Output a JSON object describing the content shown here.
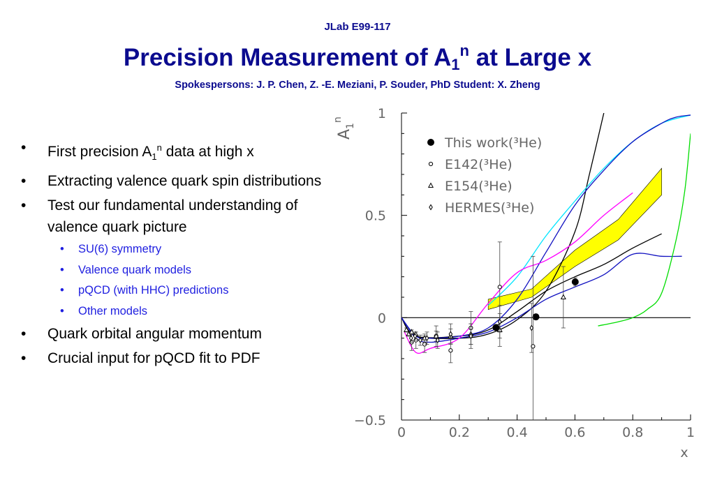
{
  "header": {
    "experiment": "JLab E99-117",
    "title_main": "Precision Measurement of A",
    "title_sub": "1",
    "title_sup": "n",
    "title_end": " at Large x",
    "spokespersons": "Spokespersons: J. P. Chen, Z. -E. Meziani, P. Souder, PhD Student: X. Zheng"
  },
  "bullets": {
    "b1_pre": "First precision A",
    "b1_sub": "1",
    "b1_sup": "n",
    "b1_post": " data at high x",
    "b2": "Extracting valence quark spin distributions",
    "b3": "Test our fundamental understanding of valence quark picture",
    "sub1": "SU(6) symmetry",
    "sub2": "Valence quark models",
    "sub3": "pQCD (with HHC) predictions",
    "sub4": "Other models",
    "b4": "Quark orbital angular momentum",
    "b5": "Crucial input for pQCD fit to PDF"
  },
  "chart_data": {
    "type": "scatter",
    "xlabel": "x",
    "ylabel": "A",
    "ylabel_sub": "1",
    "ylabel_sup": "n",
    "xlim": [
      0,
      1
    ],
    "ylim": [
      -0.5,
      1
    ],
    "x_ticks": [
      "0",
      "0.2",
      "0.4",
      "0.6",
      "0.8",
      "1"
    ],
    "y_ticks": [
      "-0.5",
      "0",
      "0.5",
      "1"
    ],
    "legend_position": "top-left inside",
    "series": [
      {
        "name": "This work(3He)",
        "marker": "filled-circle",
        "points": [
          [
            0.327,
            -0.048,
            0.0
          ],
          [
            0.465,
            0.004,
            0.0
          ],
          [
            0.601,
            0.175,
            0.02
          ]
        ]
      },
      {
        "name": "E142(3He)",
        "marker": "open-circle",
        "points": [
          [
            0.035,
            -0.12,
            0.04
          ],
          [
            0.05,
            -0.11,
            0.04
          ],
          [
            0.08,
            -0.13,
            0.04
          ],
          [
            0.12,
            -0.09,
            0.05
          ],
          [
            0.17,
            -0.16,
            0.06
          ],
          [
            0.24,
            -0.05,
            0.08
          ],
          [
            0.34,
            0.15,
            0.22
          ],
          [
            0.455,
            -0.14,
            0.44
          ]
        ]
      },
      {
        "name": "E154(3He)",
        "marker": "open-triangle",
        "points": [
          [
            0.017,
            -0.06,
            0.01
          ],
          [
            0.025,
            -0.08,
            0.01
          ],
          [
            0.035,
            -0.07,
            0.01
          ],
          [
            0.049,
            -0.08,
            0.01
          ],
          [
            0.08,
            -0.1,
            0.02
          ],
          [
            0.12,
            -0.09,
            0.025
          ],
          [
            0.17,
            -0.09,
            0.035
          ],
          [
            0.24,
            -0.08,
            0.05
          ],
          [
            0.34,
            -0.06,
            0.08
          ],
          [
            0.56,
            0.1,
            0.15
          ]
        ]
      },
      {
        "name": "HERMES(3He)",
        "marker": "open-diamond",
        "points": [
          [
            0.033,
            -0.1,
            0.02
          ],
          [
            0.047,
            -0.09,
            0.02
          ],
          [
            0.065,
            -0.11,
            0.025
          ],
          [
            0.088,
            -0.1,
            0.03
          ],
          [
            0.125,
            -0.11,
            0.04
          ],
          [
            0.17,
            -0.08,
            0.05
          ],
          [
            0.24,
            -0.09,
            0.06
          ],
          [
            0.34,
            -0.02,
            0.08
          ],
          [
            0.45,
            -0.05,
            0.12
          ]
        ]
      }
    ],
    "curves": [
      {
        "color": "#000000",
        "points": [
          [
            0,
            0
          ],
          [
            0.05,
            -0.09
          ],
          [
            0.2,
            -0.1
          ],
          [
            0.3,
            -0.08
          ],
          [
            0.4,
            -0.01
          ],
          [
            0.5,
            0.13
          ],
          [
            0.6,
            0.42
          ],
          [
            0.65,
            0.7
          ],
          [
            0.7,
            1.0
          ]
        ]
      },
      {
        "color": "#000000",
        "points": [
          [
            0,
            0
          ],
          [
            0.05,
            -0.09
          ],
          [
            0.2,
            -0.09
          ],
          [
            0.3,
            -0.06
          ],
          [
            0.4,
            0.03
          ],
          [
            0.5,
            0.13
          ],
          [
            0.6,
            0.2
          ],
          [
            0.7,
            0.26
          ],
          [
            0.8,
            0.34
          ],
          [
            0.9,
            0.41
          ]
        ]
      },
      {
        "color": "#00e5ff",
        "points": [
          [
            0.3,
            0.06
          ],
          [
            0.4,
            0.2
          ],
          [
            0.5,
            0.4
          ],
          [
            0.6,
            0.57
          ],
          [
            0.7,
            0.73
          ],
          [
            0.8,
            0.86
          ],
          [
            0.9,
            0.95
          ],
          [
            1.0,
            0.99
          ]
        ]
      },
      {
        "color": "#1010c0",
        "points": [
          [
            0,
            0
          ],
          [
            0.05,
            -0.09
          ],
          [
            0.1,
            -0.1
          ],
          [
            0.2,
            -0.09
          ],
          [
            0.3,
            -0.05
          ],
          [
            0.4,
            0.09
          ],
          [
            0.5,
            0.32
          ],
          [
            0.6,
            0.55
          ],
          [
            0.7,
            0.72
          ],
          [
            0.8,
            0.86
          ],
          [
            0.9,
            0.95
          ],
          [
            0.95,
            0.98
          ],
          [
            1.0,
            0.99
          ]
        ]
      },
      {
        "color": "#1010c0",
        "points": [
          [
            0,
            0
          ],
          [
            0.05,
            -0.1
          ],
          [
            0.1,
            -0.12
          ],
          [
            0.2,
            -0.1
          ],
          [
            0.3,
            -0.07
          ],
          [
            0.4,
            0.0
          ],
          [
            0.5,
            0.09
          ],
          [
            0.6,
            0.15
          ],
          [
            0.7,
            0.21
          ],
          [
            0.8,
            0.31
          ],
          [
            0.9,
            0.3
          ],
          [
            0.97,
            0.3
          ]
        ]
      },
      {
        "color": "#ff00ff",
        "points": [
          [
            0.01,
            -0.07
          ],
          [
            0.05,
            -0.17
          ],
          [
            0.1,
            -0.15
          ],
          [
            0.2,
            -0.1
          ],
          [
            0.3,
            0.07
          ],
          [
            0.4,
            0.22
          ],
          [
            0.5,
            0.28
          ],
          [
            0.6,
            0.37
          ],
          [
            0.7,
            0.5
          ],
          [
            0.8,
            0.61
          ]
        ]
      },
      {
        "color": "#00dd00",
        "points": [
          [
            0.68,
            -0.04
          ],
          [
            0.75,
            -0.02
          ],
          [
            0.8,
            0.0
          ],
          [
            0.85,
            0.04
          ],
          [
            0.9,
            0.12
          ],
          [
            0.95,
            0.38
          ],
          [
            0.98,
            0.62
          ],
          [
            1.0,
            0.9
          ]
        ]
      }
    ],
    "band": {
      "color": "#ffff00",
      "upper": [
        [
          0.3,
          0.09
        ],
        [
          0.45,
          0.14
        ],
        [
          0.6,
          0.33
        ],
        [
          0.75,
          0.48
        ],
        [
          0.9,
          0.73
        ]
      ],
      "lower": [
        [
          0.3,
          0.04
        ],
        [
          0.45,
          0.1
        ],
        [
          0.6,
          0.25
        ],
        [
          0.75,
          0.38
        ],
        [
          0.9,
          0.6
        ]
      ]
    }
  }
}
